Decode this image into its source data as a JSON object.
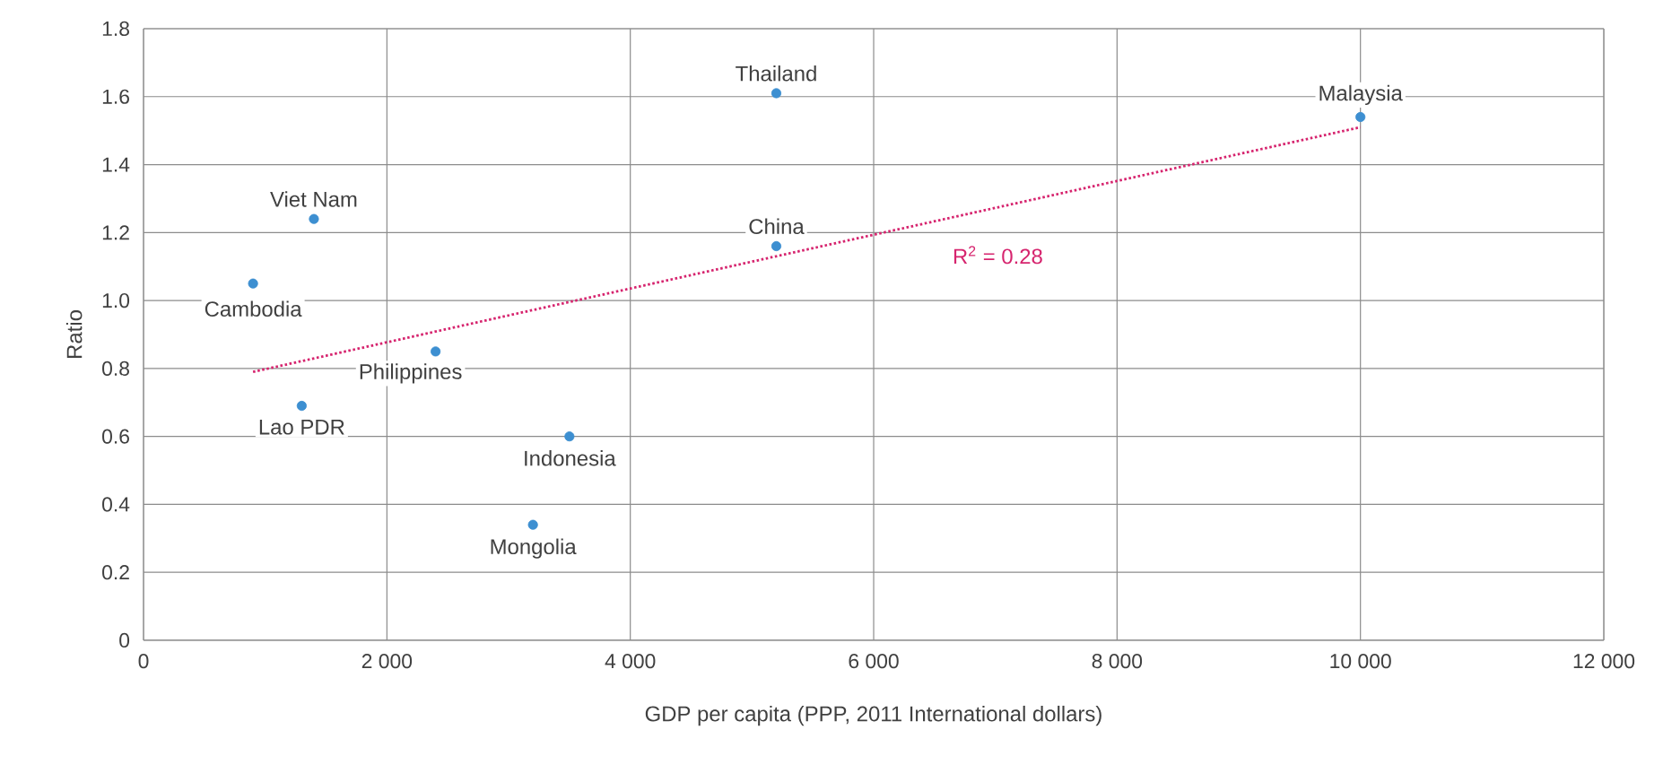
{
  "chart_data": {
    "type": "scatter",
    "xlabel": "GDP per capita (PPP, 2011 International dollars)",
    "ylabel": "Ratio",
    "xlim": [
      0,
      12000
    ],
    "ylim": [
      0,
      1.8
    ],
    "xticks": [
      {
        "value": 0,
        "label": "0"
      },
      {
        "value": 2000,
        "label": "2 000"
      },
      {
        "value": 4000,
        "label": "4 000"
      },
      {
        "value": 6000,
        "label": "6 000"
      },
      {
        "value": 8000,
        "label": "8 000"
      },
      {
        "value": 10000,
        "label": "10 000"
      },
      {
        "value": 12000,
        "label": "12 000"
      }
    ],
    "yticks": [
      {
        "value": 0,
        "label": "0"
      },
      {
        "value": 0.2,
        "label": "0.2"
      },
      {
        "value": 0.4,
        "label": "0.4"
      },
      {
        "value": 0.6,
        "label": "0.6"
      },
      {
        "value": 0.8,
        "label": "0.8"
      },
      {
        "value": 1.0,
        "label": "1.0"
      },
      {
        "value": 1.2,
        "label": "1.2"
      },
      {
        "value": 1.4,
        "label": "1.4"
      },
      {
        "value": 1.6,
        "label": "1.6"
      },
      {
        "value": 1.8,
        "label": "1.8"
      }
    ],
    "grid": true,
    "marker": "circle",
    "series": [
      {
        "color": "#3d8fd1",
        "x": [
          5200,
          10000,
          1400,
          5200,
          900,
          2400,
          1300,
          3500,
          3200
        ],
        "values": [
          1.61,
          1.54,
          1.24,
          1.16,
          1.05,
          0.85,
          0.69,
          0.6,
          0.34
        ]
      },
      {
        "type": "line",
        "color": "#d6246e",
        "line_style": "dotted",
        "marker": "none",
        "x": [
          900,
          10000
        ],
        "values": [
          0.79,
          1.51
        ]
      }
    ],
    "annotations": [
      {
        "text": "Thailand",
        "x": 5200,
        "y": 1.61
      },
      {
        "text": "Malaysia",
        "x": 10000,
        "y": 1.54
      },
      {
        "text": "Viet Nam",
        "x": 1400,
        "y": 1.24
      },
      {
        "text": "China",
        "x": 5200,
        "y": 1.16
      },
      {
        "text": "Cambodia",
        "x": 900,
        "y": 1.05
      },
      {
        "text": "Philippines",
        "x": 2400,
        "y": 0.85
      },
      {
        "text": "Lao PDR",
        "x": 1300,
        "y": 0.69
      },
      {
        "text": "Indonesia",
        "x": 3500,
        "y": 0.6
      },
      {
        "text": "Mongolia",
        "x": 3200,
        "y": 0.34
      },
      "R$^{2}$ = 0.28"
    ]
  }
}
